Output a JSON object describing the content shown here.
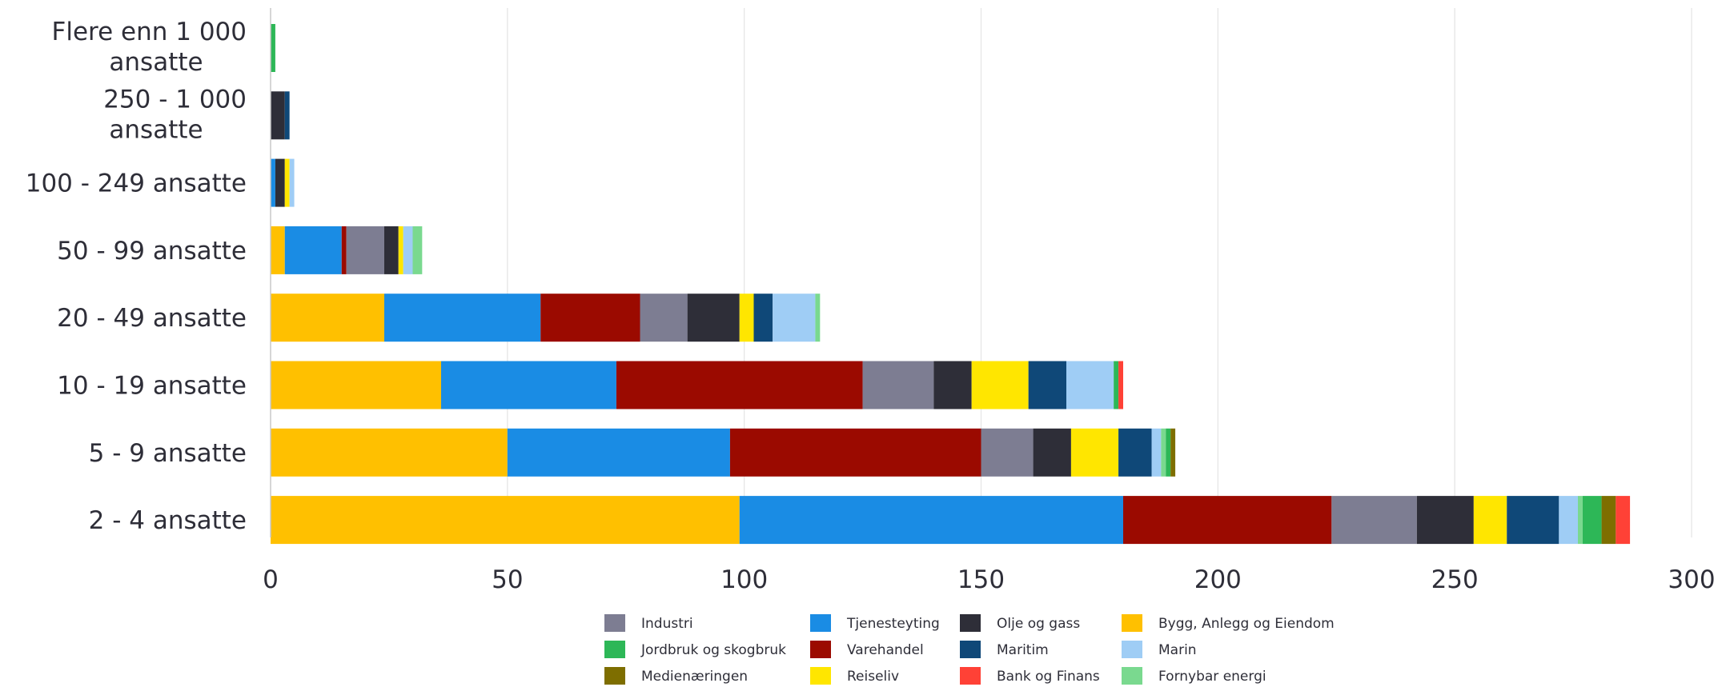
{
  "chart_data": {
    "type": "bar",
    "orientation": "horizontal",
    "stacked": true,
    "categories": [
      "Flere enn 1 000 ansatte",
      "250 - 1 000 ansatte",
      "100 - 249 ansatte",
      "50 - 99 ansatte",
      "20 - 49 ansatte",
      "10 - 19 ansatte",
      "5 - 9 ansatte",
      "2 - 4 ansatte"
    ],
    "xlim": [
      0,
      300
    ],
    "xticks": [
      0,
      50,
      100,
      150,
      200,
      250,
      300
    ],
    "grid": true,
    "legend_position": "bottom",
    "series": [
      {
        "name": "Bygg, Anlegg og Eiendom",
        "color": "#ffc000",
        "values": [
          0,
          0,
          0,
          3,
          24,
          36,
          50,
          99
        ]
      },
      {
        "name": "Tjenesteyting",
        "color": "#1a8ce4",
        "values": [
          0,
          0,
          1,
          12,
          33,
          37,
          47,
          81
        ]
      },
      {
        "name": "Varehandel",
        "color": "#9b0a00",
        "values": [
          0,
          0,
          0,
          1,
          21,
          52,
          53,
          44
        ]
      },
      {
        "name": "Industri",
        "color": "#7d7d92",
        "values": [
          0,
          0,
          0,
          8,
          10,
          15,
          11,
          18
        ]
      },
      {
        "name": "Olje og gass",
        "color": "#2e2e38",
        "values": [
          0,
          3,
          2,
          3,
          11,
          8,
          8,
          12
        ]
      },
      {
        "name": "Reiseliv",
        "color": "#ffe600",
        "values": [
          0,
          0,
          1,
          1,
          3,
          12,
          10,
          7
        ]
      },
      {
        "name": "Maritim",
        "color": "#0f4878",
        "values": [
          0,
          1,
          0,
          0,
          4,
          8,
          7,
          11
        ]
      },
      {
        "name": "Marin",
        "color": "#9fcdf5",
        "values": [
          0,
          0,
          1,
          2,
          9,
          10,
          2,
          4
        ]
      },
      {
        "name": "Fornybar energi",
        "color": "#7ad98f",
        "values": [
          0,
          0,
          0,
          2,
          1,
          0,
          1,
          1
        ]
      },
      {
        "name": "Jordbruk og skogbruk",
        "color": "#2db757",
        "values": [
          1,
          0,
          0,
          0,
          0,
          1,
          1,
          4
        ]
      },
      {
        "name": "Medienæringen",
        "color": "#7e6e00",
        "values": [
          0,
          0,
          0,
          0,
          0,
          0,
          1,
          3
        ]
      },
      {
        "name": "Bank og Finans",
        "color": "#ff4136",
        "values": [
          0,
          0,
          0,
          0,
          0,
          1,
          0,
          3
        ]
      }
    ],
    "legend_order": [
      "Industri",
      "Jordbruk og skogbruk",
      "Medienæringen",
      "Tjenesteyting",
      "Varehandel",
      "Reiseliv",
      "Olje og gass",
      "Maritim",
      "Bank og Finans",
      "Bygg, Anlegg og Eiendom",
      "Marin",
      "Fornybar energi"
    ]
  }
}
